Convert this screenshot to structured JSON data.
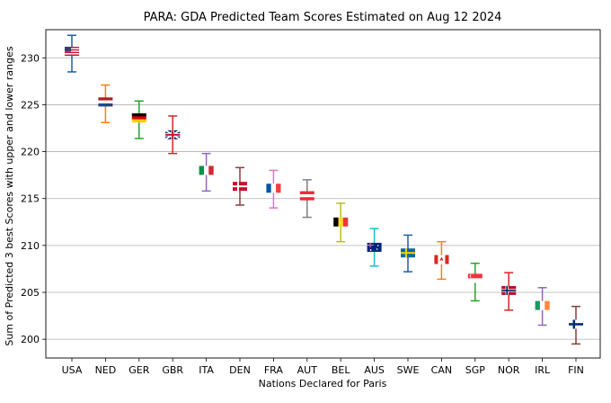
{
  "chart_data": {
    "type": "errorbar",
    "title": "PARA: GDA Predicted Team Scores Estimated on Aug 12 2024",
    "xlabel": "Nations Declared for Paris",
    "ylabel": "Sum of Predicted 3 best Scores with upper and lower ranges",
    "ylim": [
      198,
      233
    ],
    "yticks": [
      200,
      205,
      210,
      215,
      220,
      225,
      230
    ],
    "grid": "horizontal",
    "categories": [
      "USA",
      "NED",
      "GER",
      "GBR",
      "ITA",
      "DEN",
      "FRA",
      "AUT",
      "BEL",
      "AUS",
      "SWE",
      "CAN",
      "SGP",
      "NOR",
      "IRL",
      "FIN"
    ],
    "values": [
      230.7,
      225.3,
      223.6,
      221.8,
      218.0,
      216.3,
      216.1,
      215.3,
      212.5,
      209.8,
      209.2,
      208.5,
      206.5,
      205.2,
      203.6,
      201.6
    ],
    "upper": [
      232.4,
      227.1,
      225.4,
      223.8,
      219.8,
      218.3,
      218.0,
      217.0,
      214.5,
      211.8,
      211.1,
      210.4,
      208.1,
      207.1,
      205.5,
      203.5
    ],
    "lower": [
      228.5,
      223.1,
      221.4,
      219.8,
      215.8,
      214.3,
      214.0,
      213.0,
      210.4,
      207.8,
      207.2,
      206.4,
      204.1,
      203.1,
      201.5,
      199.5
    ],
    "bar_colors": [
      "#1f5fa8",
      "#ff7f0e",
      "#2ca02c",
      "#d62728",
      "#9467bd",
      "#8c3c3c",
      "#e377c2",
      "#7f7f7f",
      "#bcbd22",
      "#17becf",
      "#1f5fa8",
      "#ff7f0e",
      "#2ca02c",
      "#d62728",
      "#9467bd",
      "#8c3c3c"
    ],
    "flags": [
      "us-flag-icon",
      "netherlands-flag-icon",
      "germany-flag-icon",
      "uk-flag-icon",
      "italy-flag-icon",
      "denmark-flag-icon",
      "france-flag-icon",
      "austria-flag-icon",
      "belgium-flag-icon",
      "australia-flag-icon",
      "sweden-flag-icon",
      "canada-flag-icon",
      "singapore-flag-icon",
      "norway-flag-icon",
      "ireland-flag-icon",
      "finland-flag-icon"
    ]
  }
}
